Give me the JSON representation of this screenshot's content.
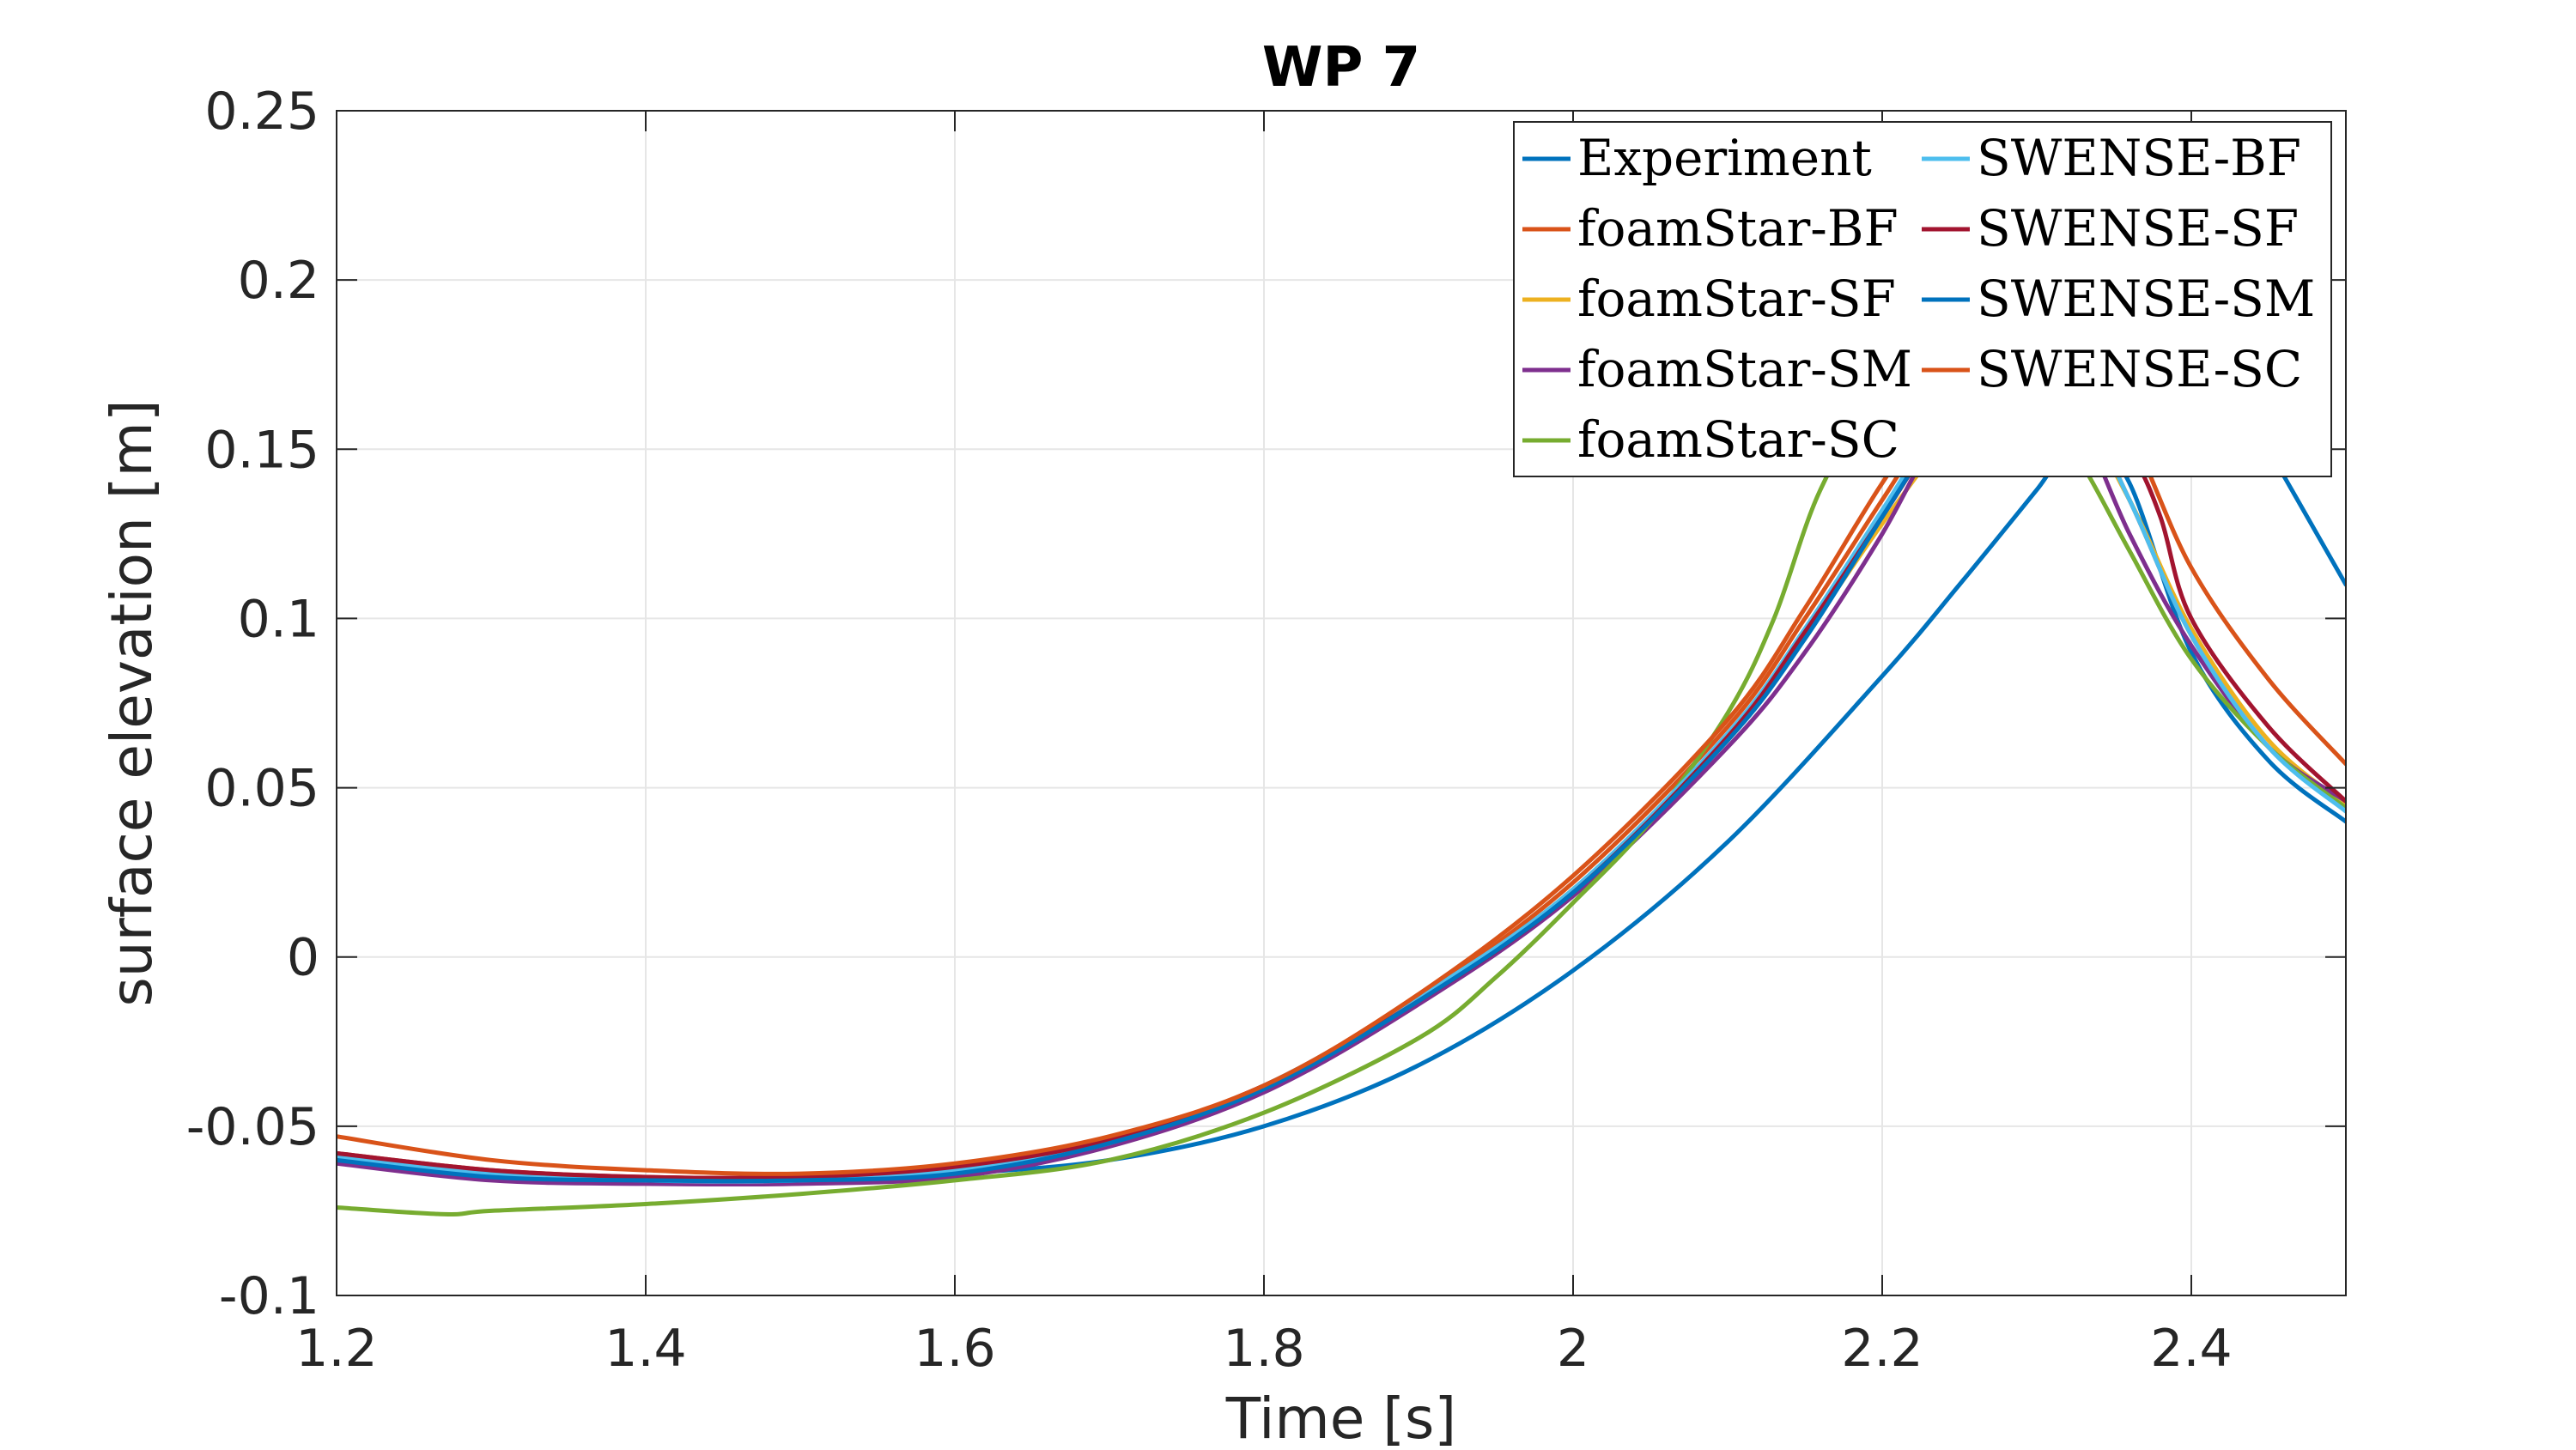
{
  "chart_data": {
    "type": "line",
    "title": "WP 7",
    "xlabel": "Time [s]",
    "ylabel": "surface elevation [m]",
    "xlim": [
      1.2,
      2.5
    ],
    "ylim": [
      -0.1,
      0.25
    ],
    "xticks": [
      1.2,
      1.4,
      1.6,
      1.8,
      2.0,
      2.2,
      2.4
    ],
    "xtick_labels": [
      "1.2",
      "1.4",
      "1.6",
      "1.8",
      "2",
      "2.2",
      "2.4"
    ],
    "yticks": [
      -0.1,
      -0.05,
      0,
      0.05,
      0.1,
      0.15,
      0.2,
      0.25
    ],
    "ytick_labels": [
      "-0.1",
      "-0.05",
      "0",
      "0.05",
      "0.1",
      "0.15",
      "0.2",
      "0.25"
    ],
    "grid": true,
    "legend_position": "top-right",
    "legend_columns": 2,
    "series": [
      {
        "name": "Experiment",
        "color": "#0072BD",
        "x": [
          1.2,
          1.3,
          1.4,
          1.5,
          1.6,
          1.7,
          1.8,
          1.9,
          2.0,
          2.1,
          2.2,
          2.25,
          2.3,
          2.33,
          2.36,
          2.4,
          2.45,
          2.5
        ],
        "y": [
          -0.06,
          -0.064,
          -0.066,
          -0.066,
          -0.064,
          -0.06,
          -0.05,
          -0.032,
          -0.004,
          0.034,
          0.083,
          0.11,
          0.138,
          0.155,
          0.14,
          0.09,
          0.058,
          0.04
        ]
      },
      {
        "name": "foamStar-BF",
        "color": "#D95319",
        "x": [
          1.2,
          1.3,
          1.4,
          1.5,
          1.6,
          1.7,
          1.8,
          1.9,
          2.0,
          2.1,
          2.15,
          2.2,
          2.24,
          2.28,
          2.32,
          2.36,
          2.4,
          2.45,
          2.5
        ],
        "y": [
          -0.058,
          -0.063,
          -0.065,
          -0.065,
          -0.062,
          -0.054,
          -0.038,
          -0.012,
          0.022,
          0.068,
          0.1,
          0.135,
          0.162,
          0.175,
          0.17,
          0.135,
          0.095,
          0.062,
          0.044
        ]
      },
      {
        "name": "foamStar-SF",
        "color": "#EDB120",
        "x": [
          1.2,
          1.3,
          1.4,
          1.5,
          1.6,
          1.7,
          1.8,
          1.9,
          2.0,
          2.1,
          2.15,
          2.2,
          2.24,
          2.28,
          2.32,
          2.36,
          2.4,
          2.45,
          2.5
        ],
        "y": [
          -0.059,
          -0.064,
          -0.066,
          -0.066,
          -0.063,
          -0.055,
          -0.039,
          -0.013,
          0.02,
          0.064,
          0.095,
          0.128,
          0.152,
          0.168,
          0.165,
          0.135,
          0.097,
          0.064,
          0.045
        ]
      },
      {
        "name": "foamStar-SM",
        "color": "#7E2F8E",
        "x": [
          1.2,
          1.3,
          1.4,
          1.5,
          1.6,
          1.7,
          1.8,
          1.9,
          2.0,
          2.1,
          2.15,
          2.2,
          2.24,
          2.28,
          2.32,
          2.36,
          2.4,
          2.45,
          2.5
        ],
        "y": [
          -0.061,
          -0.066,
          -0.067,
          -0.067,
          -0.065,
          -0.056,
          -0.04,
          -0.014,
          0.018,
          0.062,
          0.09,
          0.125,
          0.158,
          0.178,
          0.165,
          0.125,
          0.092,
          0.062,
          0.046
        ]
      },
      {
        "name": "foamStar-SC",
        "color": "#77AC30",
        "x": [
          1.2,
          1.27,
          1.3,
          1.4,
          1.5,
          1.6,
          1.7,
          1.8,
          1.9,
          1.95,
          2.0,
          2.05,
          2.1,
          2.13,
          2.16,
          2.2,
          2.25,
          2.3,
          2.33,
          2.36,
          2.4,
          2.45,
          2.5
        ],
        "y": [
          -0.074,
          -0.076,
          -0.075,
          -0.073,
          -0.07,
          -0.066,
          -0.06,
          -0.046,
          -0.024,
          -0.006,
          0.016,
          0.04,
          0.072,
          0.1,
          0.138,
          0.168,
          0.18,
          0.165,
          0.145,
          0.12,
          0.088,
          0.062,
          0.044
        ]
      },
      {
        "name": "SWENSE-BF",
        "color": "#4DBEEE",
        "x": [
          1.2,
          1.3,
          1.4,
          1.5,
          1.6,
          1.7,
          1.8,
          1.9,
          2.0,
          2.1,
          2.15,
          2.2,
          2.24,
          2.28,
          2.32,
          2.36,
          2.4,
          2.45,
          2.5
        ],
        "y": [
          -0.059,
          -0.064,
          -0.066,
          -0.066,
          -0.063,
          -0.055,
          -0.038,
          -0.012,
          0.02,
          0.066,
          0.097,
          0.132,
          0.16,
          0.178,
          0.17,
          0.135,
          0.095,
          0.062,
          0.043
        ]
      },
      {
        "name": "SWENSE-SF",
        "color": "#A2142F",
        "x": [
          1.2,
          1.3,
          1.4,
          1.5,
          1.6,
          1.7,
          1.8,
          1.9,
          2.0,
          2.1,
          2.15,
          2.2,
          2.24,
          2.28,
          2.32,
          2.36,
          2.38,
          2.4,
          2.45,
          2.5
        ],
        "y": [
          -0.058,
          -0.063,
          -0.065,
          -0.065,
          -0.062,
          -0.054,
          -0.038,
          -0.013,
          0.019,
          0.065,
          0.096,
          0.13,
          0.158,
          0.18,
          0.178,
          0.15,
          0.13,
          0.1,
          0.068,
          0.046
        ]
      },
      {
        "name": "SWENSE-SM",
        "color": "#0072BD",
        "x": [
          1.2,
          1.3,
          1.4,
          1.5,
          1.6,
          1.7,
          1.8,
          1.9,
          2.0,
          2.1,
          2.15,
          2.2,
          2.24,
          2.28,
          2.32,
          2.36,
          2.4,
          2.45,
          2.5
        ],
        "y": [
          -0.06,
          -0.065,
          -0.066,
          -0.066,
          -0.064,
          -0.055,
          -0.039,
          -0.013,
          0.019,
          0.064,
          0.094,
          0.13,
          0.158,
          0.18,
          0.19,
          0.2,
          0.19,
          0.15,
          0.11
        ]
      },
      {
        "name": "SWENSE-SC",
        "color": "#D95319",
        "x": [
          1.2,
          1.3,
          1.4,
          1.5,
          1.6,
          1.7,
          1.8,
          1.9,
          2.0,
          2.1,
          2.15,
          2.2,
          2.24,
          2.28,
          2.32,
          2.36,
          2.4,
          2.45,
          2.5
        ],
        "y": [
          -0.053,
          -0.06,
          -0.063,
          -0.064,
          -0.061,
          -0.053,
          -0.038,
          -0.011,
          0.024,
          0.07,
          0.103,
          0.14,
          0.165,
          0.18,
          0.178,
          0.155,
          0.115,
          0.082,
          0.057
        ]
      }
    ]
  }
}
